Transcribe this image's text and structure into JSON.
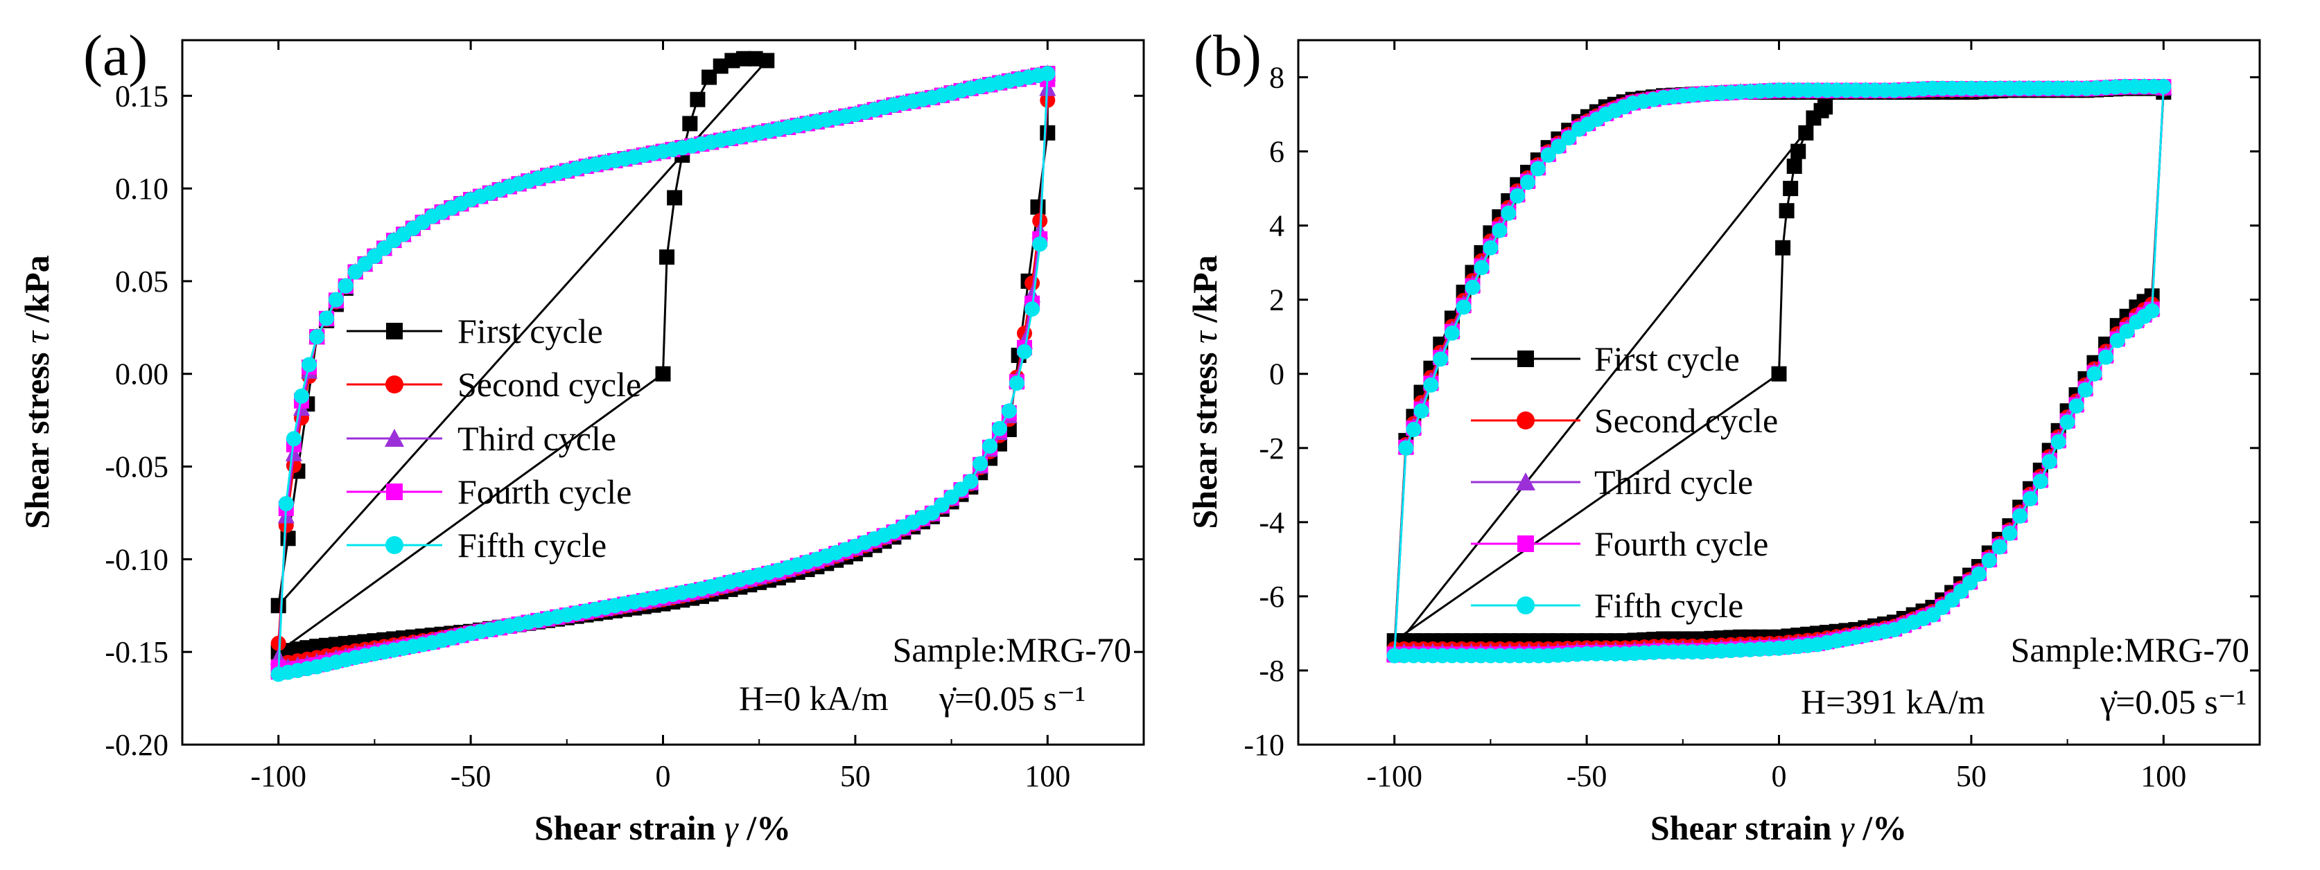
{
  "chart_data": [
    {
      "panel_label": "(a)",
      "type": "scatter",
      "xlabel": "Shear strain",
      "xlabel_symbol": "γ",
      "xlabel_unit": "/%",
      "ylabel": "Shear stress",
      "ylabel_symbol": "τ",
      "ylabel_unit": "/kPa",
      "xlim": [
        -125,
        125
      ],
      "ylim": [
        -0.2,
        0.18
      ],
      "xticks": [
        -100,
        -50,
        0,
        50,
        100
      ],
      "xtick_labels": [
        "-100",
        "-50",
        "0",
        "50",
        "100"
      ],
      "yticks": [
        -0.2,
        -0.15,
        -0.1,
        -0.05,
        0,
        0.05,
        0.1,
        0.15
      ],
      "ytick_labels": [
        "-0.20",
        "-0.15",
        "-0.10",
        "-0.05",
        "0.00",
        "0.05",
        "0.10",
        "0.15"
      ],
      "grid": false,
      "legend_position": "center-left",
      "annotations": [
        "Sample:MRG-70",
        "H=0 kA/m",
        "γ̇=0.05 s⁻¹"
      ],
      "series": [
        {
          "name": "First cycle",
          "color": "#000000",
          "marker": "square",
          "ramp_x": [
            0,
            1,
            3,
            5,
            7,
            9,
            12,
            15,
            18,
            21,
            24,
            27
          ],
          "ramp_y": [
            0,
            0.063,
            0.095,
            0.118,
            0.135,
            0.148,
            0.16,
            0.166,
            0.169,
            0.17,
            0.17,
            0.169
          ],
          "upper_x": [
            -100,
            -90,
            -80,
            -70,
            -60,
            -50,
            -40,
            -30,
            -20,
            -10,
            0,
            10,
            20,
            30,
            40,
            50,
            60,
            70,
            80,
            90,
            100
          ],
          "upper_y": [
            -0.125,
            0.02,
            0.055,
            0.072,
            0.085,
            0.094,
            0.101,
            0.107,
            0.112,
            0.116,
            0.12,
            0.124,
            0.128,
            0.132,
            0.136,
            0.14,
            0.145,
            0.149,
            0.154,
            0.158,
            0.162
          ],
          "lower_x": [
            -100,
            -90,
            -80,
            -70,
            -60,
            -50,
            -40,
            -30,
            -20,
            -10,
            0,
            10,
            20,
            30,
            40,
            50,
            60,
            70,
            80,
            90,
            100
          ],
          "lower_y": [
            -0.15,
            -0.147,
            -0.145,
            -0.143,
            -0.141,
            -0.139,
            -0.136,
            -0.133,
            -0.13,
            -0.127,
            -0.124,
            -0.12,
            -0.115,
            -0.11,
            -0.104,
            -0.097,
            -0.088,
            -0.077,
            -0.061,
            -0.03,
            0.13
          ]
        },
        {
          "name": "Second cycle",
          "color": "#ff0000",
          "marker": "circle"
        },
        {
          "name": "Third cycle",
          "color": "#9b30d9",
          "marker": "triangle"
        },
        {
          "name": "Fourth cycle",
          "color": "#ff00ff",
          "marker": "square"
        },
        {
          "name": "Fifth cycle",
          "color": "#00e5ee",
          "marker": "circle",
          "upper_x": [
            -100,
            -98,
            -96,
            -94,
            -92,
            -90,
            -85,
            -80,
            -70,
            -60,
            -50,
            -40,
            -30,
            -20,
            -10,
            0,
            10,
            20,
            30,
            40,
            50,
            60,
            70,
            80,
            90,
            100
          ],
          "upper_y": [
            -0.162,
            -0.07,
            -0.035,
            -0.012,
            0.005,
            0.02,
            0.04,
            0.055,
            0.072,
            0.085,
            0.094,
            0.101,
            0.107,
            0.112,
            0.116,
            0.12,
            0.124,
            0.128,
            0.132,
            0.136,
            0.14,
            0.145,
            0.149,
            0.154,
            0.158,
            0.162
          ],
          "lower_x": [
            -100,
            -90,
            -80,
            -70,
            -60,
            -50,
            -40,
            -30,
            -20,
            -10,
            0,
            10,
            20,
            30,
            40,
            50,
            60,
            70,
            80,
            90,
            92,
            94,
            96,
            98,
            100
          ],
          "lower_y": [
            -0.162,
            -0.158,
            -0.153,
            -0.149,
            -0.145,
            -0.14,
            -0.136,
            -0.132,
            -0.128,
            -0.124,
            -0.12,
            -0.116,
            -0.111,
            -0.106,
            -0.1,
            -0.093,
            -0.085,
            -0.075,
            -0.058,
            -0.02,
            -0.005,
            0.012,
            0.035,
            0.07,
            0.162
          ]
        }
      ]
    },
    {
      "panel_label": "(b)",
      "type": "scatter",
      "xlabel": "Shear strain",
      "xlabel_symbol": "γ",
      "xlabel_unit": "/%",
      "ylabel": "Shear stress",
      "ylabel_symbol": "τ",
      "ylabel_unit": "/kPa",
      "xlim": [
        -125,
        125
      ],
      "ylim": [
        -10,
        9
      ],
      "xticks": [
        -100,
        -50,
        0,
        50,
        100
      ],
      "xtick_labels": [
        "-100",
        "-50",
        "0",
        "50",
        "100"
      ],
      "yticks": [
        -10,
        -8,
        -6,
        -4,
        -2,
        0,
        2,
        4,
        6,
        8
      ],
      "ytick_labels": [
        "-10",
        "-8",
        "-6",
        "-4",
        "-2",
        "0",
        "2",
        "4",
        "6",
        "8"
      ],
      "grid": false,
      "legend_position": "center-left",
      "annotations": [
        "Sample:MRG-70",
        "H=391 kA/m",
        "γ̇=0.05 s⁻¹"
      ],
      "series": [
        {
          "name": "First cycle",
          "color": "#000000",
          "marker": "square",
          "ramp_x": [
            0,
            1,
            2,
            3,
            4,
            5,
            7,
            9,
            11,
            12
          ],
          "ramp_y": [
            0,
            3.4,
            4.4,
            5.0,
            5.6,
            6.0,
            6.5,
            6.9,
            7.1,
            7.2
          ],
          "upper_x": [
            -100,
            -97,
            -93,
            -88,
            -82,
            -75,
            -68,
            -60,
            -52,
            -45,
            -38,
            -30,
            -20,
            -10,
            0,
            10,
            20,
            30,
            40,
            50,
            60,
            70,
            80,
            90,
            100
          ],
          "upper_y": [
            -7.4,
            -1.8,
            -0.5,
            0.8,
            2.2,
            3.8,
            5.1,
            6.1,
            6.8,
            7.2,
            7.4,
            7.5,
            7.55,
            7.6,
            7.6,
            7.6,
            7.6,
            7.6,
            7.6,
            7.6,
            7.65,
            7.65,
            7.65,
            7.7,
            7.7
          ],
          "lower_x": [
            -100,
            -90,
            -80,
            -70,
            -60,
            -50,
            -40,
            -30,
            -20,
            -10,
            0,
            10,
            20,
            30,
            40,
            45,
            52,
            60,
            68,
            75,
            82,
            88,
            93,
            97,
            100
          ],
          "lower_y": [
            -7.2,
            -7.2,
            -7.2,
            -7.2,
            -7.2,
            -7.2,
            -7.2,
            -7.15,
            -7.15,
            -7.1,
            -7.1,
            -7.0,
            -6.9,
            -6.7,
            -6.3,
            -5.9,
            -5.2,
            -4.1,
            -2.6,
            -1.0,
            0.3,
            1.3,
            1.8,
            2.1,
            7.6
          ]
        },
        {
          "name": "Second cycle",
          "color": "#ff0000",
          "marker": "circle"
        },
        {
          "name": "Third cycle",
          "color": "#9b30d9",
          "marker": "triangle"
        },
        {
          "name": "Fourth cycle",
          "color": "#ff00ff",
          "marker": "square"
        },
        {
          "name": "Fifth cycle",
          "color": "#00e5ee",
          "marker": "circle",
          "upper_x": [
            -100,
            -97,
            -93,
            -88,
            -82,
            -75,
            -68,
            -60,
            -52,
            -45,
            -38,
            -30,
            -20,
            -10,
            0,
            10,
            20,
            30,
            40,
            50,
            60,
            70,
            80,
            90,
            100
          ],
          "upper_y": [
            -7.6,
            -2.0,
            -1.0,
            0.4,
            1.8,
            3.4,
            4.8,
            5.9,
            6.6,
            7.0,
            7.3,
            7.45,
            7.55,
            7.6,
            7.65,
            7.65,
            7.65,
            7.65,
            7.7,
            7.7,
            7.7,
            7.7,
            7.7,
            7.75,
            7.75
          ],
          "lower_x": [
            -100,
            -90,
            -80,
            -70,
            -60,
            -50,
            -40,
            -30,
            -20,
            -10,
            0,
            10,
            20,
            30,
            40,
            45,
            52,
            60,
            68,
            75,
            82,
            88,
            93,
            97,
            100
          ],
          "lower_y": [
            -7.6,
            -7.6,
            -7.6,
            -7.6,
            -7.6,
            -7.55,
            -7.55,
            -7.5,
            -7.5,
            -7.45,
            -7.4,
            -7.3,
            -7.1,
            -6.9,
            -6.5,
            -6.1,
            -5.4,
            -4.3,
            -2.9,
            -1.3,
            0.0,
            0.9,
            1.4,
            1.7,
            7.75
          ]
        }
      ]
    }
  ]
}
